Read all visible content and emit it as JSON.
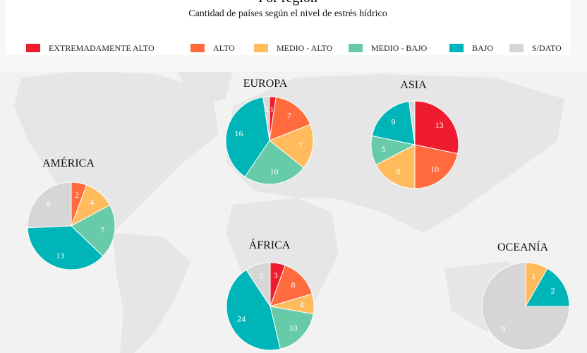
{
  "header": {
    "title": "Por región",
    "subtitle": "Cantidad de países según el nivel de estrés hídrico"
  },
  "legend": [
    {
      "label": "EXTREMADAMENTE ALTO",
      "color": "#ee1c2e"
    },
    {
      "label": "ALTO",
      "color": "#ff6b3d"
    },
    {
      "label": "MEDIO - ALTO",
      "color": "#ffbb5c"
    },
    {
      "label": "MEDIO - BAJO",
      "color": "#67cba9"
    },
    {
      "label": "BAJO",
      "color": "#00b5b8"
    },
    {
      "label": "S/DATO",
      "color": "#d6d6d6"
    }
  ],
  "chart_data": [
    {
      "type": "pie",
      "title": "EUROPA",
      "categories": [
        "EXTREMADAMENTE ALTO",
        "ALTO",
        "MEDIO - ALTO",
        "MEDIO - BAJO",
        "BAJO",
        "S/DATO"
      ],
      "values": [
        1,
        7,
        7,
        10,
        16,
        1
      ]
    },
    {
      "type": "pie",
      "title": "ASIA",
      "categories": [
        "EXTREMADAMENTE ALTO",
        "ALTO",
        "MEDIO - ALTO",
        "MEDIO - BAJO",
        "BAJO",
        "S/DATO"
      ],
      "values": [
        13,
        10,
        8,
        5,
        9,
        1
      ]
    },
    {
      "type": "pie",
      "title": "AMÉRICA",
      "categories": [
        "EXTREMADAMENTE ALTO",
        "ALTO",
        "MEDIO - ALTO",
        "MEDIO - BAJO",
        "BAJO",
        "S/DATO"
      ],
      "values": [
        0,
        2,
        4,
        7,
        13,
        9
      ]
    },
    {
      "type": "pie",
      "title": "ÁFRICA",
      "categories": [
        "EXTREMADAMENTE ALTO",
        "ALTO",
        "MEDIO - ALTO",
        "MEDIO - BAJO",
        "BAJO",
        "S/DATO"
      ],
      "values": [
        3,
        8,
        4,
        10,
        24,
        5
      ]
    },
    {
      "type": "pie",
      "title": "OCEANÍA",
      "categories": [
        "EXTREMADAMENTE ALTO",
        "ALTO",
        "MEDIO - ALTO",
        "MEDIO - BAJO",
        "BAJO",
        "S/DATO"
      ],
      "values": [
        0,
        0,
        1,
        0,
        2,
        9
      ]
    }
  ]
}
